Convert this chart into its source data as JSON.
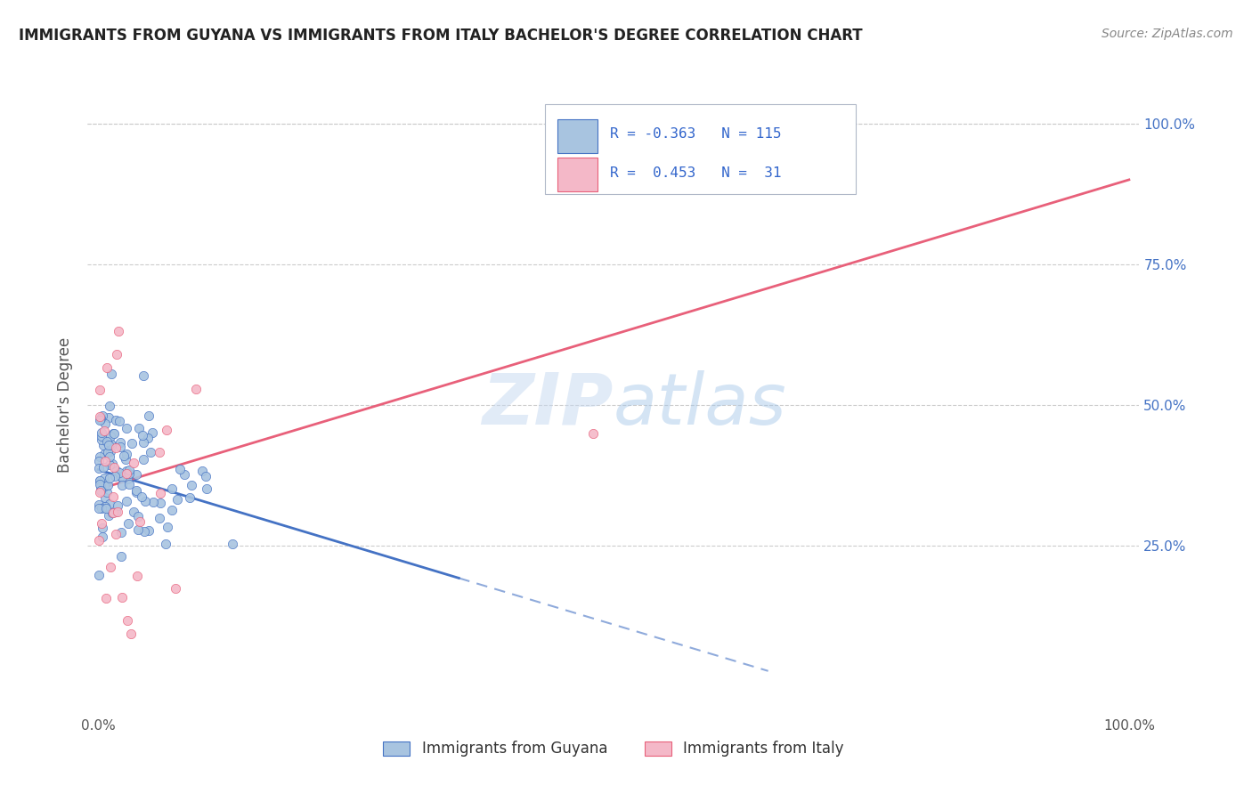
{
  "title": "IMMIGRANTS FROM GUYANA VS IMMIGRANTS FROM ITALY BACHELOR'S DEGREE CORRELATION CHART",
  "source": "Source: ZipAtlas.com",
  "ylabel": "Bachelor's Degree",
  "guyana_R": -0.363,
  "guyana_N": 115,
  "italy_R": 0.453,
  "italy_N": 31,
  "guyana_color": "#a8c4e0",
  "guyana_line_color": "#4472c4",
  "italy_color": "#f4b8c8",
  "italy_line_color": "#e8607a",
  "watermark_color": "#c8ddf0",
  "background_color": "#ffffff",
  "grid_color": "#cccccc",
  "title_color": "#222222",
  "source_color": "#888888",
  "axis_label_color": "#4472c4",
  "guyana_trend_intercept": 0.385,
  "guyana_trend_slope": -0.55,
  "italy_trend_intercept": 0.35,
  "italy_trend_slope": 0.55
}
